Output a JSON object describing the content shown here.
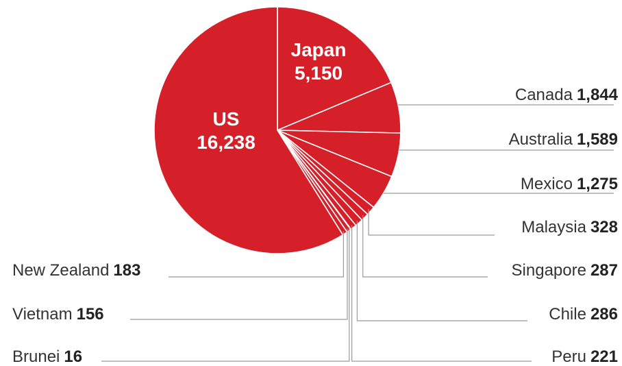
{
  "chart_data": {
    "type": "pie",
    "color": "#d5202a",
    "slices": [
      {
        "name": "Japan",
        "value": "5,150",
        "amount": 5150
      },
      {
        "name": "Canada",
        "value": "1,844",
        "amount": 1844
      },
      {
        "name": "Australia",
        "value": "1,589",
        "amount": 1589
      },
      {
        "name": "Mexico",
        "value": "1,275",
        "amount": 1275
      },
      {
        "name": "Malaysia",
        "value": "328",
        "amount": 328
      },
      {
        "name": "Singapore",
        "value": "287",
        "amount": 287
      },
      {
        "name": "Chile",
        "value": "286",
        "amount": 286
      },
      {
        "name": "Peru",
        "value": "221",
        "amount": 221
      },
      {
        "name": "Brunei",
        "value": "16",
        "amount": 16
      },
      {
        "name": "Vietnam",
        "value": "156",
        "amount": 156
      },
      {
        "name": "New Zealand",
        "value": "183",
        "amount": 183
      },
      {
        "name": "US",
        "value": "16,238",
        "amount": 16238
      }
    ]
  }
}
